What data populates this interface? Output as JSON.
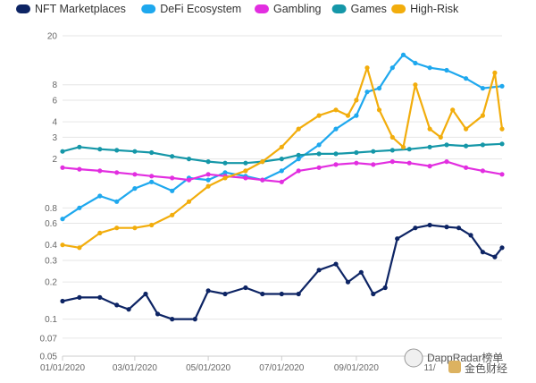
{
  "colors": {
    "NFT Marketplaces": "#0d2464",
    "DeFi Ecosystem": "#1ea8ee",
    "Gambling": "#e22ee0",
    "Games": "#1597a8",
    "High-Risk": "#f2ad0c",
    "grid": "#e6e6e6",
    "axis": "#cccccc"
  },
  "watermark": {
    "text": "DappRadar榜单",
    "logo_text": "金色财经"
  },
  "chart_data": {
    "type": "line",
    "title": "",
    "xlabel": "",
    "ylabel": "",
    "y_scale": "log",
    "ylim": [
      0.05,
      20
    ],
    "yticks": [
      {
        "label": "20",
        "value": 20
      },
      {
        "label": "8",
        "value": 8
      },
      {
        "label": "6",
        "value": 6
      },
      {
        "label": "4",
        "value": 4
      },
      {
        "label": "3",
        "value": 3
      },
      {
        "label": "2",
        "value": 2
      },
      {
        "label": "0.8",
        "value": 0.8
      },
      {
        "label": "0.6",
        "value": 0.6
      },
      {
        "label": "0.4",
        "value": 0.4
      },
      {
        "label": "0.3",
        "value": 0.3
      },
      {
        "label": "0.2",
        "value": 0.2
      },
      {
        "label": "0.1",
        "value": 0.1
      },
      {
        "label": "0.07",
        "value": 0.07
      },
      {
        "label": "0.05",
        "value": 0.05
      }
    ],
    "xlim": [
      "2020-01-01",
      "2020-12-31"
    ],
    "xticks": [
      {
        "label": "01/01/2020",
        "date": "2020-01-01"
      },
      {
        "label": "03/01/2020",
        "date": "2020-03-01"
      },
      {
        "label": "05/01/2020",
        "date": "2020-05-01"
      },
      {
        "label": "07/01/2020",
        "date": "2020-07-01"
      },
      {
        "label": "09/01/2020",
        "date": "2020-09-01"
      },
      {
        "label": "11/",
        "date": "2020-11-01"
      }
    ],
    "legend_position": "top-left",
    "grid": true,
    "series": [
      {
        "name": "NFT Marketplaces",
        "dates": [
          "2020-01-01",
          "2020-01-15",
          "2020-02-01",
          "2020-02-15",
          "2020-02-25",
          "2020-03-10",
          "2020-03-20",
          "2020-04-01",
          "2020-04-20",
          "2020-05-01",
          "2020-05-15",
          "2020-06-01",
          "2020-06-15",
          "2020-07-01",
          "2020-07-15",
          "2020-08-01",
          "2020-08-15",
          "2020-08-25",
          "2020-09-05",
          "2020-09-15",
          "2020-09-25",
          "2020-10-05",
          "2020-10-20",
          "2020-11-01",
          "2020-11-15",
          "2020-11-25",
          "2020-12-05",
          "2020-12-15",
          "2020-12-25",
          "2020-12-31"
        ],
        "values": [
          0.14,
          0.15,
          0.15,
          0.13,
          0.12,
          0.16,
          0.11,
          0.1,
          0.1,
          0.17,
          0.16,
          0.18,
          0.16,
          0.16,
          0.16,
          0.25,
          0.28,
          0.2,
          0.24,
          0.16,
          0.18,
          0.45,
          0.55,
          0.58,
          0.56,
          0.55,
          0.48,
          0.35,
          0.32,
          0.38
        ]
      },
      {
        "name": "DeFi Ecosystem",
        "dates": [
          "2020-01-01",
          "2020-01-15",
          "2020-02-01",
          "2020-02-15",
          "2020-03-01",
          "2020-03-15",
          "2020-04-01",
          "2020-04-15",
          "2020-05-01",
          "2020-05-15",
          "2020-06-01",
          "2020-06-15",
          "2020-07-01",
          "2020-07-15",
          "2020-08-01",
          "2020-08-15",
          "2020-09-01",
          "2020-09-10",
          "2020-09-20",
          "2020-10-01",
          "2020-10-10",
          "2020-10-20",
          "2020-11-01",
          "2020-11-15",
          "2020-12-01",
          "2020-12-15",
          "2020-12-31"
        ],
        "values": [
          0.65,
          0.8,
          1.0,
          0.9,
          1.15,
          1.3,
          1.1,
          1.4,
          1.35,
          1.55,
          1.45,
          1.35,
          1.6,
          2.0,
          2.6,
          3.5,
          4.5,
          7.0,
          7.5,
          11.0,
          14.0,
          12.0,
          11.0,
          10.5,
          9.0,
          7.5,
          7.8
        ]
      },
      {
        "name": "Gambling",
        "dates": [
          "2020-01-01",
          "2020-01-15",
          "2020-02-01",
          "2020-02-15",
          "2020-03-01",
          "2020-03-15",
          "2020-04-01",
          "2020-04-15",
          "2020-05-01",
          "2020-05-15",
          "2020-06-01",
          "2020-06-15",
          "2020-07-01",
          "2020-07-15",
          "2020-08-01",
          "2020-08-15",
          "2020-09-01",
          "2020-09-15",
          "2020-10-01",
          "2020-10-15",
          "2020-11-01",
          "2020-11-15",
          "2020-12-01",
          "2020-12-15",
          "2020-12-31"
        ],
        "values": [
          1.7,
          1.65,
          1.6,
          1.55,
          1.5,
          1.45,
          1.4,
          1.35,
          1.5,
          1.45,
          1.4,
          1.35,
          1.3,
          1.6,
          1.7,
          1.8,
          1.85,
          1.8,
          1.9,
          1.85,
          1.75,
          1.9,
          1.7,
          1.6,
          1.5
        ]
      },
      {
        "name": "Games",
        "dates": [
          "2020-01-01",
          "2020-01-15",
          "2020-02-01",
          "2020-02-15",
          "2020-03-01",
          "2020-03-15",
          "2020-04-01",
          "2020-04-15",
          "2020-05-01",
          "2020-05-15",
          "2020-06-01",
          "2020-06-15",
          "2020-07-01",
          "2020-07-15",
          "2020-08-01",
          "2020-08-15",
          "2020-09-01",
          "2020-09-15",
          "2020-10-01",
          "2020-10-15",
          "2020-11-01",
          "2020-11-15",
          "2020-12-01",
          "2020-12-15",
          "2020-12-31"
        ],
        "values": [
          2.3,
          2.5,
          2.4,
          2.35,
          2.3,
          2.25,
          2.1,
          2.0,
          1.9,
          1.85,
          1.85,
          1.9,
          2.0,
          2.15,
          2.2,
          2.2,
          2.25,
          2.3,
          2.35,
          2.4,
          2.5,
          2.6,
          2.55,
          2.6,
          2.65
        ]
      },
      {
        "name": "High-Risk",
        "dates": [
          "2020-01-01",
          "2020-01-15",
          "2020-02-01",
          "2020-02-15",
          "2020-03-01",
          "2020-03-15",
          "2020-04-01",
          "2020-04-15",
          "2020-05-01",
          "2020-05-15",
          "2020-06-01",
          "2020-06-15",
          "2020-07-01",
          "2020-07-15",
          "2020-08-01",
          "2020-08-15",
          "2020-08-25",
          "2020-09-01",
          "2020-09-10",
          "2020-09-20",
          "2020-10-01",
          "2020-10-10",
          "2020-10-20",
          "2020-11-01",
          "2020-11-10",
          "2020-11-20",
          "2020-12-01",
          "2020-12-15",
          "2020-12-25",
          "2020-12-31"
        ],
        "values": [
          0.4,
          0.38,
          0.5,
          0.55,
          0.55,
          0.58,
          0.7,
          0.9,
          1.2,
          1.4,
          1.6,
          1.9,
          2.5,
          3.5,
          4.5,
          5.0,
          4.5,
          6.0,
          11.0,
          5.0,
          3.0,
          2.5,
          8.0,
          3.5,
          3.0,
          5.0,
          3.5,
          4.5,
          10.0,
          3.5
        ]
      }
    ]
  }
}
